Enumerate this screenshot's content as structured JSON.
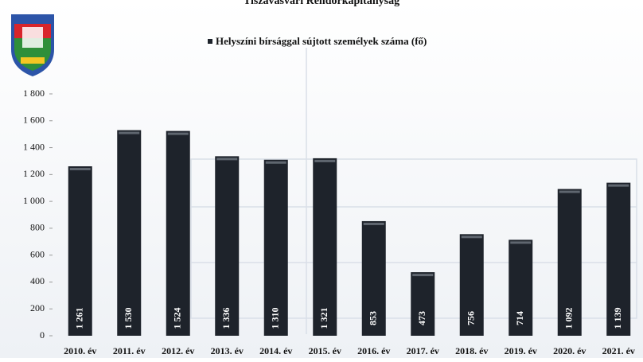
{
  "chart_data": {
    "type": "bar",
    "title": "Tiszavasvári Rendőrkapitányság",
    "categories": [
      "2010. év",
      "2011. év",
      "2012. év",
      "2013. év",
      "2014. év",
      "2015. év",
      "2016. év",
      "2017. év",
      "2018. év",
      "2019. év",
      "2020. év",
      "2021. év"
    ],
    "series": [
      {
        "name": "Helyszíni bírsággal sújtott személyek száma (fő)",
        "color": "#1e232b",
        "values": [
          1261,
          1530,
          1524,
          1336,
          1310,
          1321,
          853,
          473,
          756,
          714,
          1092,
          1139
        ],
        "value_labels": [
          "1 261",
          "1 530",
          "1 524",
          "1 336",
          "1 310",
          "1 321",
          "853",
          "473",
          "756",
          "714",
          "1 092",
          "1 139"
        ]
      }
    ],
    "ylim": [
      0,
      1800
    ],
    "yticks": [
      0,
      200,
      400,
      600,
      800,
      {
        "value": 1000,
        "label": "1 000"
      },
      {
        "value": 1200,
        "label": "1 200"
      },
      {
        "value": 1400,
        "label": "1 400"
      },
      {
        "value": 1600,
        "label": "1 600"
      },
      {
        "value": 1800,
        "label": "1 800"
      }
    ]
  }
}
